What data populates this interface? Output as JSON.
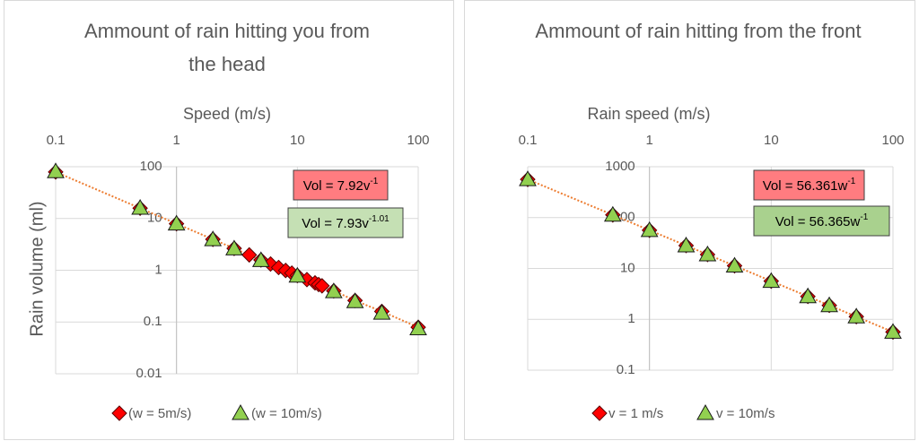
{
  "chart_data": [
    {
      "type": "scatter",
      "title": "Ammount of rain hitting you from the head",
      "x_label": "Speed (m/s)",
      "y_label": "Rain volume (ml)",
      "xscale": "log",
      "yscale": "log",
      "grid": true,
      "legend": "bottom",
      "xlim": [
        0.1,
        100
      ],
      "xticks": [
        0.1,
        1,
        10,
        100
      ],
      "ylim": [
        0.01,
        100
      ],
      "yticks": [
        0.01,
        0.1,
        1,
        10,
        100
      ],
      "series": [
        {
          "name": "(w = 5m/s)",
          "color": "#ff0000",
          "marker": "diamond",
          "x": [
            0.1,
            0.5,
            1,
            2,
            3,
            4,
            5,
            6,
            7,
            8,
            9,
            10,
            12,
            14,
            15,
            16,
            20,
            30,
            50,
            100
          ],
          "values": [
            79.2,
            15.8,
            7.92,
            3.96,
            2.64,
            1.98,
            1.58,
            1.32,
            1.13,
            0.99,
            0.88,
            0.79,
            0.66,
            0.57,
            0.53,
            0.5,
            0.4,
            0.26,
            0.16,
            0.079
          ]
        },
        {
          "name": "(w = 10m/s)",
          "color": "#92d050",
          "marker": "triangle",
          "x": [
            0.1,
            0.5,
            1,
            2,
            3,
            5,
            10,
            20,
            30,
            50,
            100
          ],
          "values": [
            81.1,
            16,
            7.93,
            3.94,
            2.62,
            1.56,
            0.78,
            0.39,
            0.25,
            0.15,
            0.075
          ]
        }
      ],
      "annotations": [
        {
          "text": "Vol = 7.92v",
          "exponent": "-1",
          "color": "#ff7c80"
        },
        {
          "text": "Vol = 7.93v",
          "exponent": "-1.01",
          "color": "#c5e0b4"
        }
      ]
    },
    {
      "type": "scatter",
      "title": "Ammount of rain hitting from the front",
      "x_label": "Rain speed (m/s)",
      "xscale": "log",
      "yscale": "log",
      "grid": true,
      "legend": "bottom",
      "xlim": [
        0.1,
        100
      ],
      "xticks": [
        0.1,
        1,
        10,
        100
      ],
      "ylim": [
        0.1,
        1000
      ],
      "yticks": [
        0.1,
        1,
        10,
        100,
        1000
      ],
      "series": [
        {
          "name": "v = 1 m/s",
          "color": "#ff0000",
          "marker": "diamond",
          "x": [
            0.1,
            0.5,
            1,
            2,
            3,
            5,
            10,
            20,
            30,
            50,
            100
          ],
          "values": [
            564,
            113,
            56.4,
            28.2,
            18.8,
            11.3,
            5.64,
            2.82,
            1.88,
            1.13,
            0.564
          ]
        },
        {
          "name": "v = 10m/s",
          "color": "#92d050",
          "marker": "triangle",
          "x": [
            0.1,
            0.5,
            1,
            2,
            3,
            5,
            10,
            20,
            30,
            50,
            100
          ],
          "values": [
            564,
            113,
            56.4,
            28.2,
            18.8,
            11.3,
            5.64,
            2.82,
            1.88,
            1.13,
            0.564
          ]
        }
      ],
      "annotations": [
        {
          "text": "Vol = 56.361w",
          "exponent": "-1",
          "color": "#ff7c80"
        },
        {
          "text": "Vol = 56.365w",
          "exponent": "-1",
          "color": "#a9d18e"
        }
      ]
    }
  ]
}
